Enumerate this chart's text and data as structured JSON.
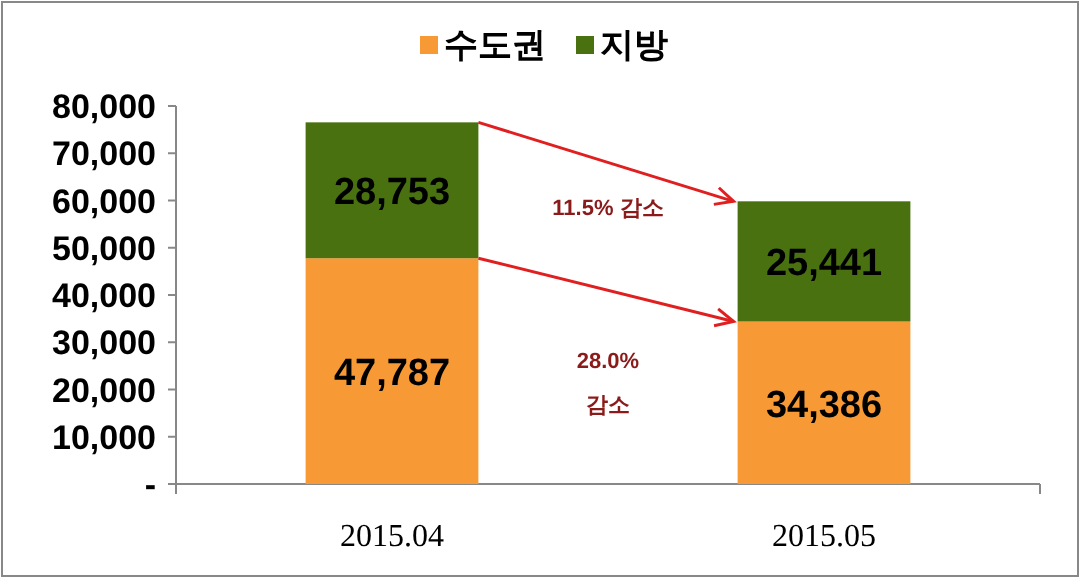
{
  "chart_data": {
    "type": "bar",
    "stacked": true,
    "categories": [
      "2015.04",
      "2015.05"
    ],
    "series": [
      {
        "name": "수도권",
        "color": "#f79a35",
        "values": [
          47787,
          34386
        ],
        "value_labels": [
          "47,787",
          "34,386"
        ]
      },
      {
        "name": "지방",
        "color": "#4a7110",
        "values": [
          28753,
          25441
        ],
        "value_labels": [
          "28,753",
          "25,441"
        ]
      }
    ],
    "ylim": [
      0,
      80000
    ],
    "yticks": [
      {
        "value": 0,
        "label": "-"
      },
      {
        "value": 10000,
        "label": "10,000"
      },
      {
        "value": 20000,
        "label": "20,000"
      },
      {
        "value": 30000,
        "label": "30,000"
      },
      {
        "value": 40000,
        "label": "40,000"
      },
      {
        "value": 50000,
        "label": "50,000"
      },
      {
        "value": 60000,
        "label": "60,000"
      },
      {
        "value": 70000,
        "label": "70,000"
      },
      {
        "value": 80000,
        "label": "80,000"
      }
    ],
    "legend": "top",
    "annotations": [
      "11.5% 감소",
      "28.0%\n감소"
    ]
  }
}
